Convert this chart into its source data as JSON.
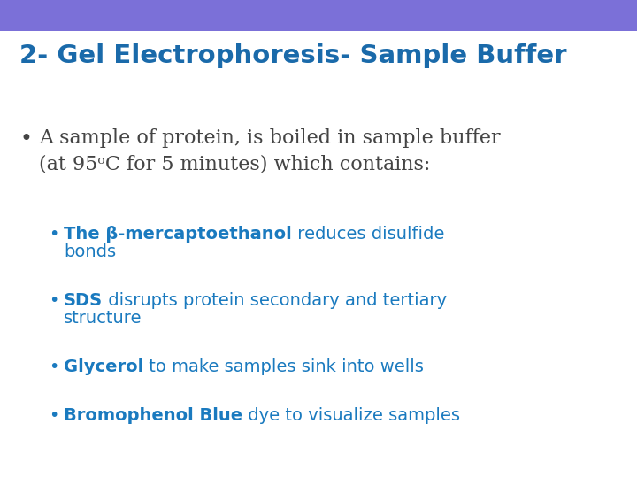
{
  "title": "2- Gel Electrophoresis- Sample Buffer",
  "title_color": "#1a6aaa",
  "header_bar_color": "#7B70D8",
  "bg_color": "#ffffff",
  "bullet1_color": "#444444",
  "sub_color": "#1a7abf",
  "sub_bullets": [
    {
      "bold_text": "The β-mercaptoethanol",
      "rest_text": " reduces disulfide\nbonds"
    },
    {
      "bold_text": "SDS",
      "rest_text": " disrupts protein secondary and tertiary\nstructure"
    },
    {
      "bold_text": "Glycerol",
      "rest_text": " to make samples sink into wells"
    },
    {
      "bold_text": "Bromophenol Blue",
      "rest_text": " dye to visualize samples"
    }
  ]
}
